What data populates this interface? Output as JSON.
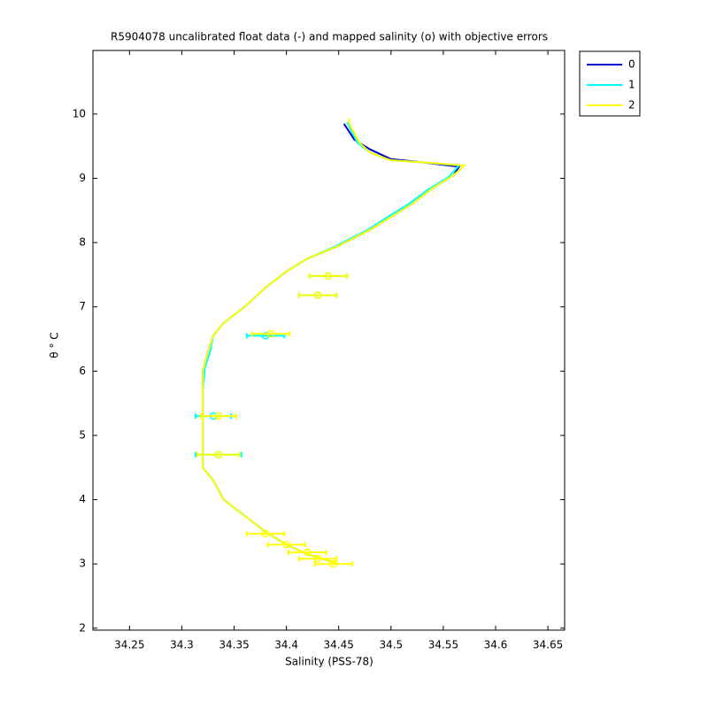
{
  "chart_data": {
    "type": "line",
    "title": "R5904078 uncalibrated float data (-) and mapped salinity (o) with objective errors",
    "xlabel": "Salinity (PSS-78)",
    "ylabel": "θ ° C",
    "xlim": [
      34.215,
      34.666
    ],
    "ylim": [
      1.97,
      10.99
    ],
    "xticks": [
      34.25,
      34.3,
      34.35,
      34.4,
      34.45,
      34.5,
      34.55,
      34.6,
      34.65
    ],
    "yticks": [
      2,
      3,
      4,
      5,
      6,
      7,
      8,
      9,
      10
    ],
    "series": [
      {
        "name": "0",
        "color": "#0000cc",
        "x": [
          34.455,
          34.465,
          34.48,
          34.5,
          34.53,
          34.565,
          34.56,
          34.54,
          34.52,
          34.5,
          34.48,
          34.45,
          34.42,
          34.4,
          34.38,
          34.36,
          34.34,
          34.33,
          34.325,
          34.32,
          34.32,
          34.32,
          34.32,
          34.32,
          34.33,
          34.34,
          34.36,
          34.38,
          34.4,
          34.42,
          34.44,
          34.45
        ],
        "values": [
          9.85,
          9.6,
          9.45,
          9.3,
          9.25,
          9.18,
          9.05,
          8.85,
          8.6,
          8.4,
          8.2,
          7.95,
          7.75,
          7.55,
          7.3,
          7.0,
          6.75,
          6.55,
          6.3,
          6.0,
          5.7,
          5.3,
          4.8,
          4.5,
          4.3,
          4.0,
          3.75,
          3.5,
          3.3,
          3.15,
          3.05,
          3.0
        ]
      },
      {
        "name": "1",
        "color": "#00ffff",
        "x": [
          34.458,
          34.468,
          34.48,
          34.5,
          34.53,
          34.565,
          34.555,
          34.535,
          34.515,
          34.495,
          34.478,
          34.448,
          34.42,
          34.4,
          34.38,
          34.36,
          34.34,
          34.33,
          34.327,
          34.322,
          34.32,
          34.32,
          34.32,
          34.32,
          34.33,
          34.34,
          34.36,
          34.38,
          34.4,
          34.42,
          34.44,
          34.45
        ],
        "values": [
          9.87,
          9.55,
          9.4,
          9.28,
          9.25,
          9.2,
          9.02,
          8.82,
          8.58,
          8.38,
          8.2,
          7.95,
          7.75,
          7.55,
          7.3,
          7.0,
          6.75,
          6.55,
          6.3,
          6.05,
          5.7,
          5.3,
          4.8,
          4.5,
          4.3,
          4.0,
          3.75,
          3.5,
          3.3,
          3.15,
          3.05,
          3.0
        ]
      },
      {
        "name": "2",
        "color": "#ffff00",
        "x": [
          34.46,
          34.46,
          34.47,
          34.48,
          34.5,
          34.53,
          34.57,
          34.56,
          34.54,
          34.52,
          34.5,
          34.48,
          34.45,
          34.42,
          34.4,
          34.38,
          34.36,
          34.34,
          34.33,
          34.325,
          34.32,
          34.32,
          34.32,
          34.32,
          34.32,
          34.33,
          34.34,
          34.36,
          34.38,
          34.4,
          34.42,
          34.44,
          34.45
        ],
        "values": [
          9.93,
          9.85,
          9.55,
          9.4,
          9.28,
          9.25,
          9.2,
          9.05,
          8.85,
          8.6,
          8.4,
          8.2,
          7.95,
          7.75,
          7.55,
          7.3,
          7.0,
          6.75,
          6.55,
          6.3,
          6.0,
          5.7,
          5.3,
          4.8,
          4.5,
          4.3,
          4.0,
          3.75,
          3.5,
          3.3,
          3.15,
          3.05,
          3.0
        ]
      }
    ],
    "mapped": [
      {
        "color": "#00ffff",
        "x": [
          34.44,
          34.43,
          34.38,
          34.33,
          34.335
        ],
        "values": [
          7.48,
          7.18,
          6.55,
          5.3,
          4.7
        ],
        "xerr": [
          0.018,
          0.018,
          0.018,
          0.017,
          0.022
        ]
      },
      {
        "color": "#ffff00",
        "x": [
          34.44,
          34.43,
          34.385,
          34.335,
          34.335,
          34.38,
          34.4,
          34.42,
          34.43,
          34.445
        ],
        "values": [
          7.48,
          7.18,
          6.58,
          5.3,
          4.7,
          3.47,
          3.3,
          3.18,
          3.08,
          3.0
        ],
        "xerr": [
          0.018,
          0.018,
          0.018,
          0.017,
          0.02,
          0.018,
          0.018,
          0.018,
          0.018,
          0.018
        ]
      }
    ]
  }
}
